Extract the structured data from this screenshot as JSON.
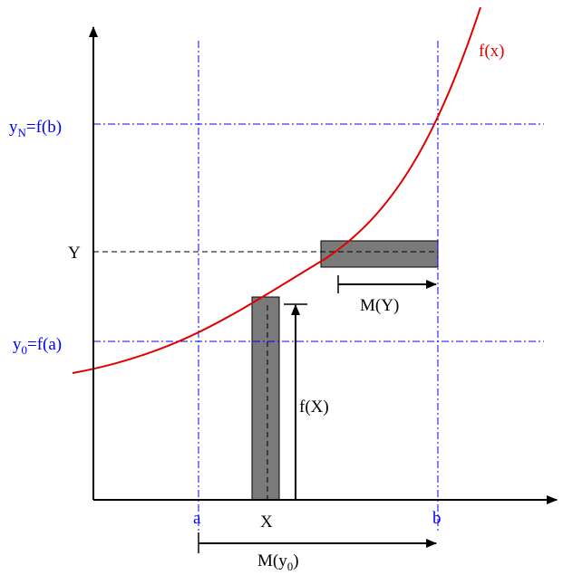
{
  "colors": {
    "curve": "#e00000",
    "blue": "#0000ff",
    "black": "#000000",
    "band": "#7a7a7a"
  },
  "labels": {
    "fx": "f(x)",
    "yN_main": "y",
    "yN_sub": "N",
    "yN_rest": "=f(b)",
    "Y": "Y",
    "y0_main": "y",
    "y0_sub": "0",
    "y0_rest": "=f(a)",
    "MY": "M(Y)",
    "fX": "f(X)",
    "a": "a",
    "X": "X",
    "b": "b",
    "My0_main": "M(y",
    "My0_sub": "0",
    "My0_rest": ")"
  }
}
